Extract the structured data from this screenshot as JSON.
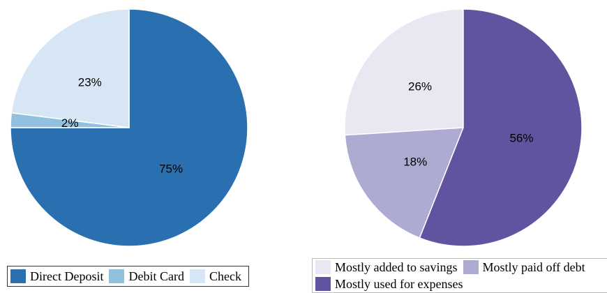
{
  "chart_data": [
    {
      "type": "pie",
      "direction": "clockwise",
      "categories": [
        "Direct Deposit",
        "Debit Card",
        "Check"
      ],
      "values": [
        75,
        2,
        23
      ],
      "value_labels": [
        "75%",
        "2%",
        "23%"
      ],
      "colors": [
        "#2a6fb0",
        "#92c0df",
        "#d6e6f4"
      ]
    },
    {
      "type": "pie",
      "direction": "counterclockwise",
      "categories": [
        "Mostly added to savings",
        "Mostly paid off debt",
        "Mostly used for expenses"
      ],
      "values": [
        26,
        18,
        56
      ],
      "value_labels": [
        "26%",
        "18%",
        "56%"
      ],
      "colors": [
        "#e9e7f2",
        "#aeabd3",
        "#6153a0"
      ]
    }
  ]
}
